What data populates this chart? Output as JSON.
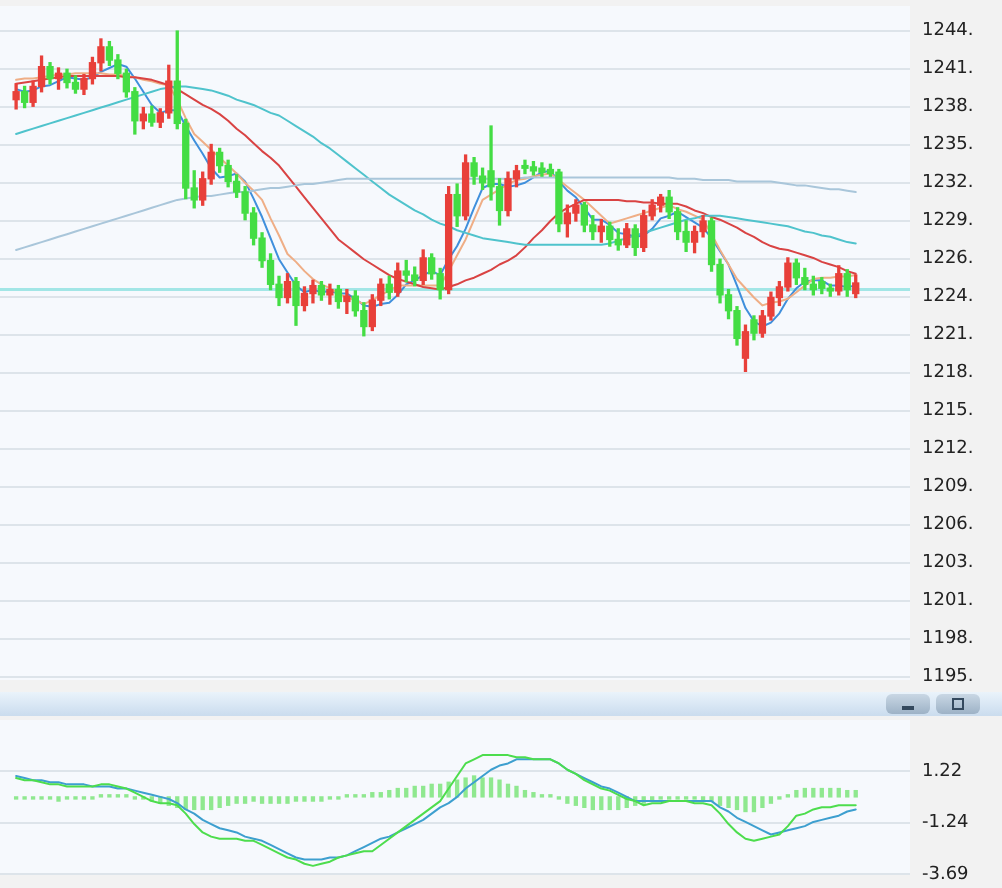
{
  "chart_data": [
    {
      "type": "candlestick",
      "categories": [
        null,
        null,
        null,
        null,
        null,
        null,
        null,
        null,
        null,
        null,
        null,
        null,
        null,
        null,
        null,
        null,
        null,
        null,
        null,
        null,
        null,
        null,
        null,
        null,
        null,
        null,
        null,
        null,
        null,
        null,
        null,
        null,
        null,
        null,
        null,
        null,
        null,
        null,
        null,
        null,
        null,
        null,
        null,
        null,
        null,
        null,
        null,
        null,
        null,
        null,
        null,
        null,
        null,
        null,
        null,
        null,
        null,
        null,
        null,
        null,
        null,
        null,
        null,
        null,
        null,
        null,
        null,
        null,
        null,
        null,
        null,
        null,
        null,
        null,
        null,
        null,
        null,
        null,
        null,
        null,
        null,
        null,
        null,
        null,
        null,
        null,
        null,
        null,
        null,
        null,
        null,
        null,
        null,
        null,
        null,
        null,
        null,
        null,
        null,
        null
      ],
      "ohlc": [
        [
          1238.5,
          1239.7,
          1237.8,
          1239.1
        ],
        [
          1239.1,
          1239.5,
          1237.9,
          1238.3
        ],
        [
          1238.3,
          1239.9,
          1238.0,
          1239.5
        ],
        [
          1239.5,
          1241.8,
          1239.1,
          1241.0
        ],
        [
          1241.0,
          1241.3,
          1239.7,
          1240.1
        ],
        [
          1240.1,
          1240.9,
          1239.3,
          1240.5
        ],
        [
          1240.5,
          1240.8,
          1239.4,
          1239.8
        ],
        [
          1239.8,
          1240.3,
          1239.0,
          1239.3
        ],
        [
          1239.3,
          1240.4,
          1238.9,
          1240.1
        ],
        [
          1240.1,
          1241.7,
          1239.7,
          1241.3
        ],
        [
          1241.3,
          1243.1,
          1240.7,
          1242.5
        ],
        [
          1242.5,
          1242.9,
          1241.1,
          1241.5
        ],
        [
          1241.5,
          1241.9,
          1240.1,
          1240.5
        ],
        [
          1240.5,
          1240.8,
          1238.7,
          1239.1
        ],
        [
          1239.1,
          1239.4,
          1235.9,
          1236.9
        ],
        [
          1236.9,
          1237.9,
          1236.3,
          1237.4
        ],
        [
          1237.4,
          1238.0,
          1236.5,
          1236.8
        ],
        [
          1236.8,
          1237.8,
          1236.4,
          1237.5
        ],
        [
          1237.5,
          1241.1,
          1237.1,
          1239.9
        ],
        [
          1239.9,
          1243.7,
          1236.3,
          1236.7
        ],
        [
          1236.7,
          1237.0,
          1231.0,
          1231.8
        ],
        [
          1231.8,
          1233.1,
          1230.3,
          1230.9
        ],
        [
          1230.9,
          1233.0,
          1230.5,
          1232.5
        ],
        [
          1232.5,
          1235.1,
          1232.1,
          1234.5
        ],
        [
          1234.5,
          1234.8,
          1233.0,
          1233.5
        ],
        [
          1233.5,
          1233.9,
          1231.9,
          1232.3
        ],
        [
          1232.3,
          1232.8,
          1231.1,
          1231.5
        ],
        [
          1231.5,
          1231.9,
          1229.4,
          1229.9
        ],
        [
          1229.9,
          1230.3,
          1227.5,
          1228.0
        ],
        [
          1228.0,
          1228.4,
          1225.8,
          1226.3
        ],
        [
          1226.3,
          1226.8,
          1224.1,
          1224.5
        ],
        [
          1224.5,
          1225.1,
          1222.9,
          1223.5
        ],
        [
          1223.5,
          1225.3,
          1223.1,
          1224.7
        ],
        [
          1224.7,
          1225.0,
          1221.4,
          1222.9
        ],
        [
          1222.9,
          1224.3,
          1222.5,
          1223.8
        ],
        [
          1223.8,
          1224.8,
          1223.1,
          1224.4
        ],
        [
          1224.4,
          1224.7,
          1223.3,
          1223.7
        ],
        [
          1223.7,
          1224.5,
          1223.0,
          1224.1
        ],
        [
          1224.1,
          1224.4,
          1222.7,
          1223.2
        ],
        [
          1223.2,
          1224.1,
          1222.3,
          1223.6
        ],
        [
          1223.6,
          1224.0,
          1222.1,
          1222.5
        ],
        [
          1222.5,
          1223.1,
          1220.6,
          1221.3
        ],
        [
          1221.3,
          1223.7,
          1221.0,
          1223.3
        ],
        [
          1223.3,
          1224.9,
          1222.9,
          1224.5
        ],
        [
          1224.5,
          1225.1,
          1223.4,
          1223.9
        ],
        [
          1223.9,
          1226.1,
          1223.6,
          1225.5
        ],
        [
          1225.5,
          1226.3,
          1224.7,
          1225.2
        ],
        [
          1225.2,
          1225.8,
          1224.4,
          1224.8
        ],
        [
          1224.8,
          1227.1,
          1224.5,
          1226.5
        ],
        [
          1226.5,
          1226.8,
          1224.9,
          1225.3
        ],
        [
          1225.3,
          1225.7,
          1223.4,
          1224.1
        ],
        [
          1224.1,
          1231.9,
          1223.8,
          1231.3
        ],
        [
          1231.3,
          1232.1,
          1228.9,
          1229.7
        ],
        [
          1229.7,
          1234.3,
          1229.4,
          1233.7
        ],
        [
          1233.7,
          1234.1,
          1232.1,
          1232.7
        ],
        [
          1232.7,
          1233.3,
          1231.7,
          1232.2
        ],
        [
          1233.1,
          1236.5,
          1230.9,
          1231.9
        ],
        [
          1231.9,
          1232.5,
          1229.0,
          1230.1
        ],
        [
          1230.1,
          1233.0,
          1229.7,
          1232.5
        ],
        [
          1232.5,
          1233.5,
          1231.9,
          1233.1
        ],
        [
          1233.5,
          1233.9,
          1232.9,
          1233.3
        ],
        [
          1233.4,
          1233.8,
          1232.8,
          1233.1
        ],
        [
          1233.3,
          1233.7,
          1232.7,
          1233.0
        ],
        [
          1233.2,
          1233.6,
          1232.7,
          1232.9
        ],
        [
          1233.0,
          1233.2,
          1228.5,
          1229.1
        ],
        [
          1229.1,
          1230.5,
          1228.1,
          1229.9
        ],
        [
          1229.9,
          1230.9,
          1229.3,
          1230.5
        ],
        [
          1230.5,
          1230.7,
          1228.5,
          1229.0
        ],
        [
          1229.0,
          1229.7,
          1227.9,
          1228.5
        ],
        [
          1228.5,
          1229.4,
          1227.7,
          1228.9
        ],
        [
          1228.9,
          1229.2,
          1227.4,
          1227.9
        ],
        [
          1227.9,
          1228.7,
          1227.1,
          1227.5
        ],
        [
          1227.5,
          1229.1,
          1227.3,
          1228.7
        ],
        [
          1228.7,
          1229.0,
          1226.7,
          1227.3
        ],
        [
          1227.3,
          1230.1,
          1227.0,
          1229.7
        ],
        [
          1229.7,
          1230.9,
          1229.4,
          1230.5
        ],
        [
          1230.5,
          1231.3,
          1230.0,
          1231.1
        ],
        [
          1231.1,
          1231.6,
          1229.5,
          1230.0
        ],
        [
          1230.0,
          1230.3,
          1227.9,
          1228.5
        ],
        [
          1228.5,
          1229.3,
          1227.0,
          1227.7
        ],
        [
          1227.7,
          1228.9,
          1226.9,
          1228.5
        ],
        [
          1228.5,
          1229.7,
          1228.1,
          1229.3
        ],
        [
          1229.3,
          1229.5,
          1225.5,
          1226.0
        ],
        [
          1226.0,
          1226.4,
          1223.1,
          1223.7
        ],
        [
          1223.7,
          1224.1,
          1221.9,
          1222.5
        ],
        [
          1222.5,
          1222.8,
          1219.9,
          1220.4
        ],
        [
          1218.9,
          1221.4,
          1217.9,
          1220.9
        ],
        [
          1221.8,
          1222.1,
          1220.3,
          1220.8
        ],
        [
          1220.8,
          1222.5,
          1220.5,
          1222.1
        ],
        [
          1222.1,
          1223.9,
          1221.8,
          1223.5
        ],
        [
          1223.5,
          1224.7,
          1222.9,
          1224.3
        ],
        [
          1224.3,
          1226.5,
          1224.0,
          1226.1
        ],
        [
          1226.1,
          1226.4,
          1224.5,
          1225.0
        ],
        [
          1225.0,
          1225.7,
          1224.1,
          1224.5
        ],
        [
          1224.5,
          1225.1,
          1223.7,
          1224.1
        ],
        [
          1224.7,
          1225.0,
          1223.8,
          1224.2
        ],
        [
          1224.2,
          1224.5,
          1223.6,
          1224.0
        ],
        [
          1224.0,
          1225.9,
          1223.7,
          1225.3
        ],
        [
          1225.3,
          1225.6,
          1223.6,
          1224.1
        ],
        [
          1223.8,
          1225.2,
          1223.5,
          1224.6
        ]
      ],
      "colors": [
        "#e8403a",
        "#44dd44",
        "#e8403a",
        "#e8403a",
        "#44dd44",
        "#e8403a",
        "#44dd44",
        "#44dd44",
        "#e8403a",
        "#e8403a",
        "#e8403a",
        "#44dd44",
        "#44dd44",
        "#44dd44",
        "#44dd44",
        "#e8403a",
        "#44dd44",
        "#e8403a",
        "#e8403a",
        "#44dd44",
        "#44dd44",
        "#44dd44",
        "#e8403a",
        "#e8403a",
        "#44dd44",
        "#44dd44",
        "#44dd44",
        "#44dd44",
        "#44dd44",
        "#44dd44",
        "#44dd44",
        "#44dd44",
        "#e8403a",
        "#44dd44",
        "#e8403a",
        "#e8403a",
        "#44dd44",
        "#e8403a",
        "#44dd44",
        "#e8403a",
        "#44dd44",
        "#44dd44",
        "#e8403a",
        "#e8403a",
        "#44dd44",
        "#e8403a",
        "#44dd44",
        "#44dd44",
        "#e8403a",
        "#44dd44",
        "#44dd44",
        "#e8403a",
        "#44dd44",
        "#e8403a",
        "#44dd44",
        "#44dd44",
        "#44dd44",
        "#44dd44",
        "#e8403a",
        "#e8403a",
        "#44dd44",
        "#44dd44",
        "#44dd44",
        "#44dd44",
        "#44dd44",
        "#e8403a",
        "#e8403a",
        "#44dd44",
        "#44dd44",
        "#e8403a",
        "#44dd44",
        "#44dd44",
        "#e8403a",
        "#44dd44",
        "#e8403a",
        "#e8403a",
        "#e8403a",
        "#44dd44",
        "#44dd44",
        "#44dd44",
        "#e8403a",
        "#e8403a",
        "#44dd44",
        "#44dd44",
        "#44dd44",
        "#44dd44",
        "#e8403a",
        "#44dd44",
        "#e8403a",
        "#e8403a",
        "#e8403a",
        "#e8403a",
        "#44dd44",
        "#44dd44",
        "#44dd44",
        "#44dd44",
        "#44dd44",
        "#e8403a",
        "#44dd44",
        "#e8403a"
      ],
      "series": [
        {
          "type": "line",
          "color": "#a9c6da",
          "values": [
            1227.1,
            1227.3,
            1227.5,
            1227.7,
            1227.9,
            1228.1,
            1228.3,
            1228.5,
            1228.7,
            1228.9,
            1229.1,
            1229.3,
            1229.5,
            1229.7,
            1229.9,
            1230.1,
            1230.3,
            1230.5,
            1230.7,
            1230.9,
            1231.0,
            1231.1,
            1231.2,
            1231.2,
            1231.3,
            1231.4,
            1231.5,
            1231.5,
            1231.6,
            1231.7,
            1231.8,
            1231.8,
            1231.9,
            1232.0,
            1232.1,
            1232.1,
            1232.2,
            1232.3,
            1232.4,
            1232.5,
            1232.5,
            1232.5,
            1232.5,
            1232.5,
            1232.5,
            1232.5,
            1232.5,
            1232.5,
            1232.5,
            1232.5,
            1232.5,
            1232.5,
            1232.5,
            1232.5,
            1232.5,
            1232.5,
            1232.5,
            1232.5,
            1232.5,
            1232.5,
            1232.6,
            1232.6,
            1232.6,
            1232.6,
            1232.6,
            1232.6,
            1232.6,
            1232.6,
            1232.6,
            1232.6,
            1232.6,
            1232.6,
            1232.6,
            1232.6,
            1232.6,
            1232.6,
            1232.6,
            1232.6,
            1232.5,
            1232.5,
            1232.5,
            1232.4,
            1232.4,
            1232.4,
            1232.4,
            1232.3,
            1232.3,
            1232.3,
            1232.3,
            1232.3,
            1232.2,
            1232.1,
            1232.0,
            1232.0,
            1231.9,
            1231.8,
            1231.7,
            1231.7,
            1231.6,
            1231.5
          ]
        },
        {
          "type": "line",
          "color": "#4fc3cc",
          "values": [
            1235.9,
            1236.1,
            1236.3,
            1236.5,
            1236.7,
            1236.9,
            1237.1,
            1237.3,
            1237.5,
            1237.7,
            1237.9,
            1238.1,
            1238.3,
            1238.5,
            1238.7,
            1238.9,
            1239.1,
            1239.3,
            1239.4,
            1239.5,
            1239.5,
            1239.4,
            1239.3,
            1239.2,
            1239.0,
            1238.8,
            1238.5,
            1238.3,
            1238.1,
            1237.8,
            1237.5,
            1237.3,
            1236.9,
            1236.5,
            1236.1,
            1235.7,
            1235.2,
            1234.8,
            1234.3,
            1233.8,
            1233.3,
            1232.8,
            1232.3,
            1231.8,
            1231.3,
            1230.9,
            1230.5,
            1230.1,
            1229.8,
            1229.4,
            1229.1,
            1228.9,
            1228.6,
            1228.4,
            1228.2,
            1228.0,
            1227.9,
            1227.8,
            1227.7,
            1227.6,
            1227.5,
            1227.5,
            1227.5,
            1227.5,
            1227.5,
            1227.5,
            1227.5,
            1227.5,
            1227.5,
            1227.5,
            1227.6,
            1227.8,
            1228.0,
            1228.2,
            1228.4,
            1228.6,
            1228.8,
            1229.0,
            1229.2,
            1229.4,
            1229.5,
            1229.7,
            1229.7,
            1229.7,
            1229.6,
            1229.5,
            1229.4,
            1229.3,
            1229.2,
            1229.1,
            1229.0,
            1228.9,
            1228.7,
            1228.5,
            1228.4,
            1228.2,
            1228.1,
            1227.9,
            1227.7,
            1227.6
          ]
        },
        {
          "type": "line",
          "color": "#d94343",
          "values": [
            1239.7,
            1239.8,
            1239.9,
            1240.0,
            1240.1,
            1240.2,
            1240.3,
            1240.3,
            1240.3,
            1240.3,
            1240.3,
            1240.3,
            1240.3,
            1240.2,
            1240.2,
            1240.1,
            1240.0,
            1239.8,
            1239.6,
            1239.3,
            1238.9,
            1238.5,
            1238.1,
            1237.8,
            1237.4,
            1236.9,
            1236.3,
            1235.8,
            1235.2,
            1234.6,
            1234.1,
            1233.5,
            1232.7,
            1231.9,
            1231.1,
            1230.3,
            1229.5,
            1228.7,
            1227.9,
            1227.4,
            1226.9,
            1226.4,
            1226.0,
            1225.6,
            1225.2,
            1224.9,
            1224.7,
            1224.5,
            1224.3,
            1224.2,
            1224.1,
            1224.3,
            1224.5,
            1224.8,
            1225.0,
            1225.3,
            1225.6,
            1226.0,
            1226.3,
            1226.7,
            1227.3,
            1228.0,
            1228.6,
            1229.3,
            1229.9,
            1230.3,
            1230.6,
            1230.9,
            1230.9,
            1230.9,
            1230.9,
            1230.9,
            1230.8,
            1230.8,
            1230.7,
            1230.7,
            1230.6,
            1230.6,
            1230.6,
            1230.4,
            1230.1,
            1229.9,
            1229.6,
            1229.4,
            1229.1,
            1228.8,
            1228.4,
            1228.1,
            1227.7,
            1227.4,
            1227.2,
            1227.1,
            1226.9,
            1226.7,
            1226.5,
            1226.2,
            1226.0,
            1225.8,
            1225.5,
            1225.3
          ]
        },
        {
          "type": "line",
          "color": "#efae86",
          "values": [
            1240.0,
            1240.1,
            1240.1,
            1240.2,
            1240.3,
            1240.4,
            1240.4,
            1240.5,
            1240.5,
            1240.5,
            1240.5,
            1240.4,
            1240.4,
            1240.3,
            1240.2,
            1240.0,
            1239.9,
            1239.7,
            1239.6,
            1238.5,
            1237.1,
            1235.9,
            1235.3,
            1234.7,
            1234.1,
            1233.5,
            1232.9,
            1232.2,
            1231.6,
            1230.9,
            1229.5,
            1228.2,
            1226.8,
            1226.2,
            1225.5,
            1224.9,
            1224.5,
            1224.2,
            1223.8,
            1223.5,
            1223.3,
            1223.0,
            1223.3,
            1223.7,
            1224.0,
            1224.4,
            1224.4,
            1224.4,
            1224.4,
            1224.4,
            1224.4,
            1225.5,
            1226.7,
            1227.9,
            1229.4,
            1230.9,
            1231.3,
            1231.7,
            1232.1,
            1232.4,
            1232.5,
            1232.7,
            1232.8,
            1232.9,
            1232.4,
            1231.9,
            1231.4,
            1230.9,
            1230.3,
            1229.7,
            1229.1,
            1229.3,
            1229.5,
            1229.7,
            1229.9,
            1230.1,
            1230.3,
            1230.5,
            1230.2,
            1230.0,
            1229.7,
            1229.4,
            1228.3,
            1227.1,
            1226.0,
            1224.9,
            1224.2,
            1223.5,
            1222.9,
            1223.1,
            1223.2,
            1223.4,
            1223.9,
            1224.4,
            1224.9,
            1225.0,
            1225.0,
            1225.1,
            1225.1,
            1225.2
          ]
        },
        {
          "type": "line",
          "color": "#3f8fdc",
          "values": [
            1239.3,
            1239.1,
            1239.2,
            1239.5,
            1239.6,
            1239.9,
            1240.2,
            1240.1,
            1240.0,
            1240.2,
            1240.6,
            1240.9,
            1241.2,
            1241.0,
            1240.1,
            1239.1,
            1238.1,
            1237.5,
            1237.7,
            1237.7,
            1236.5,
            1235.4,
            1234.4,
            1233.3,
            1232.6,
            1232.7,
            1232.9,
            1232.3,
            1231.0,
            1229.6,
            1228.0,
            1226.4,
            1225.4,
            1224.4,
            1223.9,
            1224.1,
            1223.9,
            1224.0,
            1223.8,
            1223.8,
            1223.4,
            1222.9,
            1222.8,
            1223.0,
            1223.1,
            1223.7,
            1224.5,
            1224.8,
            1225.2,
            1225.5,
            1225.2,
            1226.4,
            1227.4,
            1228.7,
            1230.3,
            1231.8,
            1232.1,
            1232.1,
            1231.9,
            1232.0,
            1232.2,
            1232.6,
            1233.0,
            1233.1,
            1232.3,
            1231.6,
            1231.1,
            1230.3,
            1229.4,
            1229.4,
            1229.0,
            1228.4,
            1228.3,
            1228.1,
            1228.2,
            1228.7,
            1229.5,
            1229.7,
            1230.0,
            1229.6,
            1229.2,
            1228.8,
            1228.0,
            1227.0,
            1226.0,
            1224.4,
            1222.7,
            1221.7,
            1221.3,
            1221.6,
            1222.3,
            1223.4,
            1224.2,
            1224.7,
            1224.8,
            1224.8,
            1224.4,
            1224.4,
            1224.3,
            1224.4
          ]
        }
      ],
      "ylim": [
        1194.5,
        1245.6
      ],
      "yticks": [
        {
          "value": 1194.76,
          "label": "1195."
        },
        {
          "value": 1197.64,
          "label": "1198."
        },
        {
          "value": 1200.52,
          "label": "1201."
        },
        {
          "value": 1203.4,
          "label": "1203."
        },
        {
          "value": 1206.28,
          "label": "1206."
        },
        {
          "value": 1209.16,
          "label": "1209."
        },
        {
          "value": 1212.04,
          "label": "1212."
        },
        {
          "value": 1214.92,
          "label": "1215."
        },
        {
          "value": 1217.8,
          "label": "1218."
        },
        {
          "value": 1220.68,
          "label": "1221."
        },
        {
          "value": 1223.56,
          "label": "1224."
        },
        {
          "value": 1226.44,
          "label": "1226."
        },
        {
          "value": 1229.32,
          "label": "1229."
        },
        {
          "value": 1232.2,
          "label": "1232."
        },
        {
          "value": 1235.08,
          "label": "1235."
        },
        {
          "value": 1237.96,
          "label": "1238."
        },
        {
          "value": 1240.84,
          "label": "1241."
        },
        {
          "value": 1243.72,
          "label": "1244."
        }
      ],
      "ref_lines": [
        {
          "axis": "y",
          "value": 1224.1,
          "color": "#a2e6e6"
        }
      ],
      "grid": "y",
      "tick_labels": "y",
      "marker": "none"
    },
    {
      "type": "line",
      "categories": [
        null,
        null,
        null,
        null,
        null,
        null,
        null,
        null,
        null,
        null,
        null,
        null,
        null,
        null,
        null,
        null,
        null,
        null,
        null,
        null,
        null,
        null,
        null,
        null,
        null,
        null,
        null,
        null,
        null,
        null,
        null,
        null,
        null,
        null,
        null,
        null,
        null,
        null,
        null,
        null,
        null,
        null,
        null,
        null,
        null,
        null,
        null,
        null,
        null,
        null,
        null,
        null,
        null,
        null,
        null,
        null,
        null,
        null,
        null,
        null,
        null,
        null,
        null,
        null,
        null,
        null,
        null,
        null,
        null,
        null,
        null,
        null,
        null,
        null,
        null,
        null,
        null,
        null,
        null,
        null,
        null,
        null,
        null,
        null,
        null,
        null,
        null,
        null,
        null,
        null,
        null,
        null,
        null,
        null,
        null,
        null,
        null,
        null,
        null,
        null
      ],
      "series": [
        {
          "type": "bar",
          "color": "#8fe88f",
          "values": [
            -0.1,
            -0.1,
            -0.1,
            -0.1,
            -0.1,
            -0.2,
            -0.1,
            -0.1,
            -0.1,
            -0.1,
            0.1,
            0.1,
            0.1,
            0.1,
            -0.1,
            -0.1,
            -0.2,
            -0.3,
            -0.4,
            -0.5,
            -0.6,
            -0.6,
            -0.6,
            -0.6,
            -0.5,
            -0.4,
            -0.3,
            -0.3,
            -0.2,
            -0.3,
            -0.3,
            -0.3,
            -0.3,
            -0.2,
            -0.2,
            -0.2,
            -0.2,
            -0.1,
            -0.1,
            0.1,
            0.1,
            0.1,
            0.2,
            0.2,
            0.3,
            0.4,
            0.4,
            0.5,
            0.5,
            0.6,
            0.6,
            0.7,
            0.8,
            0.9,
            1.0,
            0.9,
            0.9,
            0.8,
            0.6,
            0.5,
            0.3,
            0.2,
            0.1,
            0.1,
            -0.1,
            -0.3,
            -0.4,
            -0.5,
            -0.6,
            -0.6,
            -0.6,
            -0.6,
            -0.5,
            -0.4,
            -0.3,
            -0.2,
            -0.1,
            -0.1,
            -0.1,
            -0.1,
            -0.1,
            -0.2,
            -0.2,
            -0.4,
            -0.5,
            -0.6,
            -0.7,
            -0.7,
            -0.5,
            -0.3,
            -0.1,
            0.1,
            0.3,
            0.4,
            0.4,
            0.4,
            0.4,
            0.4,
            0.3,
            0.3
          ]
        },
        {
          "color": "#4ddd4d",
          "values": [
            0.9,
            0.8,
            0.8,
            0.7,
            0.6,
            0.6,
            0.5,
            0.5,
            0.5,
            0.5,
            0.6,
            0.6,
            0.5,
            0.4,
            0.2,
            0,
            -0.2,
            -0.3,
            -0.3,
            -0.4,
            -0.8,
            -1.3,
            -1.7,
            -1.9,
            -2,
            -2,
            -2,
            -2.1,
            -2.1,
            -2.3,
            -2.5,
            -2.7,
            -2.9,
            -3,
            -3.2,
            -3.3,
            -3.2,
            -3.1,
            -2.9,
            -2.8,
            -2.7,
            -2.6,
            -2.6,
            -2.3,
            -2,
            -1.7,
            -1.4,
            -1.1,
            -0.8,
            -0.5,
            -0.2,
            0.4,
            1,
            1.6,
            1.8,
            2,
            2,
            2,
            2,
            1.9,
            1.9,
            1.8,
            1.8,
            1.8,
            1.6,
            1.3,
            1.1,
            0.8,
            0.6,
            0.4,
            0.3,
            0.1,
            -0.1,
            -0.2,
            -0.4,
            -0.3,
            -0.3,
            -0.2,
            -0.2,
            -0.2,
            -0.3,
            -0.3,
            -0.4,
            -0.8,
            -1.3,
            -1.7,
            -2,
            -2.1,
            -2,
            -1.9,
            -1.8,
            -1.4,
            -0.9,
            -0.8,
            -0.6,
            -0.5,
            -0.5,
            -0.4,
            -0.4,
            -0.4
          ]
        },
        {
          "color": "#3d9fcf",
          "values": [
            1,
            0.9,
            0.8,
            0.8,
            0.7,
            0.7,
            0.6,
            0.6,
            0.6,
            0.5,
            0.5,
            0.5,
            0.4,
            0.4,
            0.3,
            0.2,
            0.1,
            0,
            -0.1,
            -0.3,
            -0.6,
            -0.8,
            -1.1,
            -1.3,
            -1.5,
            -1.6,
            -1.7,
            -1.9,
            -2,
            -2.1,
            -2.3,
            -2.5,
            -2.7,
            -2.9,
            -3,
            -3,
            -3,
            -2.9,
            -2.9,
            -2.8,
            -2.6,
            -2.4,
            -2.2,
            -2,
            -1.9,
            -1.7,
            -1.5,
            -1.3,
            -1.1,
            -0.8,
            -0.5,
            -0.3,
            0,
            0.4,
            0.7,
            1,
            1.3,
            1.5,
            1.6,
            1.8,
            1.8,
            1.8,
            1.8,
            1.8,
            1.6,
            1.3,
            1.1,
            0.9,
            0.7,
            0.5,
            0.4,
            0.2,
            0,
            -0.2,
            -0.2,
            -0.2,
            -0.2,
            -0.2,
            -0.2,
            -0.2,
            -0.2,
            -0.2,
            -0.2,
            -0.5,
            -0.7,
            -1,
            -1.2,
            -1.4,
            -1.6,
            -1.8,
            -1.7,
            -1.6,
            -1.5,
            -1.4,
            -1.2,
            -1.1,
            -1,
            -0.9,
            -0.7,
            -0.6
          ]
        }
      ],
      "ylim": [
        -3.69,
        3.68
      ],
      "yticks": [
        -3.69,
        -1.24,
        1.22
      ],
      "grid": "y",
      "tick_labels": "y",
      "marker": "none"
    }
  ]
}
